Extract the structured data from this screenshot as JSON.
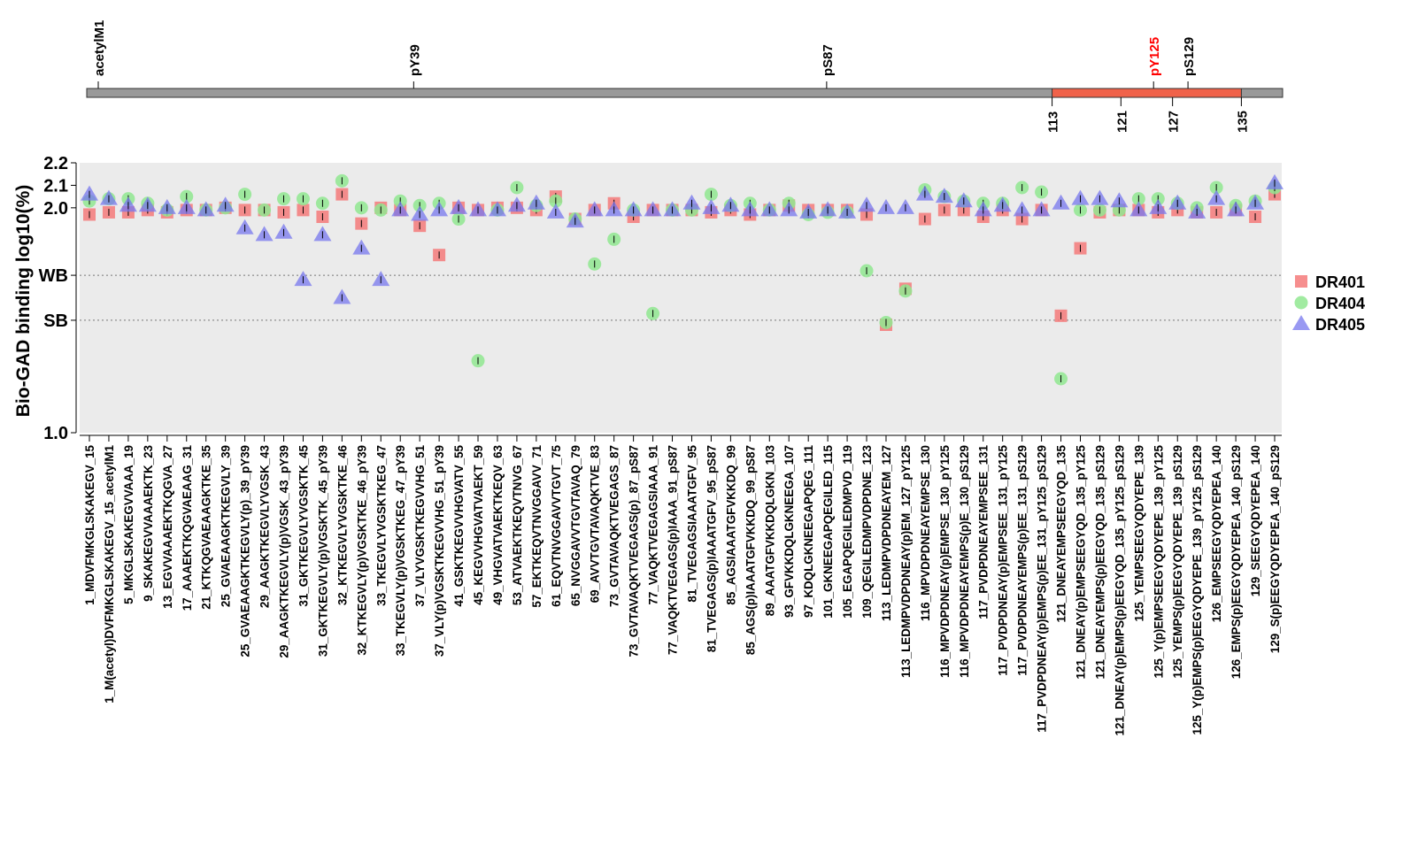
{
  "chart_data": {
    "type": "scatter",
    "ylabel": "Bio-GAD binding log10(%)",
    "yscale": "log10 of percent binding",
    "ylim": [
      1.0,
      2.2
    ],
    "yticks": [
      {
        "label": "1.0",
        "value": 1.0
      },
      {
        "label": "SB",
        "value": 1.5
      },
      {
        "label": "WB",
        "value": 1.7
      },
      {
        "label": "2.0",
        "value": 2.0
      },
      {
        "label": "2.1",
        "value": 2.1
      },
      {
        "label": "2.2",
        "value": 2.2
      }
    ],
    "reference_lines": [
      {
        "label": "WB",
        "value": 1.7
      },
      {
        "label": "SB",
        "value": 1.5
      }
    ],
    "legend_position": "right",
    "grid": false,
    "colors": {
      "DR401": "#f47a7a",
      "DR404": "#90e890",
      "DR405": "#7777ee",
      "highlight": "#ff0000",
      "region": "#f0624a",
      "bar": "#999999",
      "panel": "#ebebeb"
    },
    "categories": [
      "1_MDVFMKGLSKAKEGV_15",
      "1_M(acetyl)DVFMKGLSKAKEGV_15_acetylM1",
      "5_MKGLSKAKEGVVAAA_19",
      "9_SKAKEGVVAAAEKTK_23",
      "13_EGVVAAAEKTKQGVA_27",
      "17_AAAEKTKQGVAEAAG_31",
      "21_KTKQGVAEAAGKTKE_35",
      "25_GVAEAAGKTKEGVLY_39",
      "25_GVAEAAGKTKEGVLY(p)_39_pY39",
      "29_AAGKTKEGVLYVGSK_43",
      "29_AAGKTKEGVLY(p)VGSK_43_pY39",
      "31_GKTKEGVLYVGSKTK_45",
      "31_GKTKEGVLY(p)VGSKTK_45_pY39",
      "32_KTKEGVLYVGSKTKE_46",
      "32_KTKEGVLY(p)VGSKTKE_46_pY39",
      "33_TKEGVLYVGSKTKEG_47",
      "33_TKEGVLY(p)VGSKTKEG_47_pY39",
      "37_VLYVGSKTKEGVVHG_51",
      "37_VLY(p)VGSKTKEGVVHG_51_pY39",
      "41_GSKTKEGVVHGVATV_55",
      "45_KEGVVHGVATVAEKT_59",
      "49_VHGVATVAEKTKEQV_63",
      "53_ATVAEKTKEQVTNVG_67",
      "57_EKTKEQVTNVGGAVV_71",
      "61_EQVTNVGGAVVTGVT_75",
      "65_NVGGAVVTGVTAVAQ_79",
      "69_AVVTGVTAVAQKTVE_83",
      "73_GVTAVAQKTVEGAGS_87",
      "73_GVTAVAQKTVEGAGS(p)_87_pS87",
      "77_VAQKTVEGAGSIAAA_91",
      "77_VAQKTVEGAGS(p)IAAA_91_pS87",
      "81_TVEGAGSIAAATGFV_95",
      "81_TVEGAGS(p)IAAATGFV_95_pS87",
      "85_AGSIAAATGFVKKDQ_99",
      "85_AGS(p)IAAATGFVKKDQ_99_pS87",
      "89_AAATGFVKKDQLGKN_103",
      "93_GFVKKDQLGKNEEGA_107",
      "97_KDQLGKNEEGAPQEG_111",
      "101_GKNEEGAPQEGILED_115",
      "105_EGAPQEGILEDMPVD_119",
      "109_QEGILEDMPVDPDNE_123",
      "113_LEDMPVDPDNEAYEM_127",
      "113_LEDMPVDPDNEAY(p)EM_127_pY125",
      "116_MPVDPDNEAYEMPSE_130",
      "116_MPVDPDNEAY(p)EMPSE_130_pY125",
      "116_MPVDPDNEAYEMPS(p)E_130_pS129",
      "117_PVDPDNEAYEMPSEE_131",
      "117_PVDPDNEAY(p)EMPSEE_131_pY125",
      "117_PVDPDNEAYEMPS(p)EE_131_pS129",
      "117_PVDPDNEAY(p)EMPS(p)EE_131_pY125_pS129",
      "121_DNEAYEMPSEEGYQD_135",
      "121_DNEAY(p)EMPSEEGYQD_135_pY125",
      "121_DNEAYEMPS(p)EEGYQD_135_pS129",
      "121_DNEAY(p)EMPS(p)EEGYQD_135_pY125_pS129",
      "125_YEMPSEEGYQDYEPE_139",
      "125_Y(p)EMPSEEGYQDYEPE_139_pY125",
      "125_YEMPS(p)EEGYQDYEPE_139_pS129",
      "125_Y(p)EMPS(p)EEGYQDYEPE_139_pY125_pS129",
      "126_EMPSEEGYQDYEPEA_140",
      "126_EMPS(p)EEGYQDYEPEA_140_pS129",
      "129_SEEGYQDYEPEA_140",
      "129_S(p)EEGYQDYEPEA_140_pS129"
    ],
    "series": [
      {
        "name": "DR401",
        "shape": "square",
        "values": [
          1.97,
          1.98,
          1.98,
          1.99,
          1.98,
          1.99,
          1.99,
          2.0,
          1.99,
          1.99,
          1.98,
          1.99,
          1.96,
          2.06,
          1.93,
          2.0,
          1.99,
          1.92,
          1.79,
          2.0,
          1.99,
          2.0,
          2.0,
          1.99,
          2.05,
          1.95,
          1.99,
          2.02,
          1.96,
          1.99,
          1.99,
          1.99,
          1.98,
          1.99,
          1.97,
          1.99,
          2.01,
          1.99,
          1.99,
          1.99,
          1.97,
          1.48,
          1.64,
          1.95,
          1.99,
          1.99,
          1.96,
          1.99,
          1.95,
          1.99,
          1.52,
          1.82,
          1.98,
          1.99,
          1.99,
          1.98,
          1.99,
          1.98,
          1.98,
          1.99,
          1.96,
          2.06
        ]
      },
      {
        "name": "DR404",
        "shape": "circle",
        "values": [
          2.03,
          2.04,
          2.04,
          2.02,
          1.99,
          2.05,
          1.99,
          2.0,
          2.06,
          1.99,
          2.04,
          2.04,
          2.02,
          2.12,
          2.0,
          1.99,
          2.03,
          2.01,
          2.02,
          1.95,
          1.32,
          1.99,
          2.09,
          2.01,
          2.03,
          1.95,
          1.75,
          1.86,
          1.99,
          1.53,
          1.99,
          1.99,
          2.06,
          2.01,
          2.02,
          1.99,
          2.02,
          1.97,
          1.98,
          1.98,
          1.72,
          1.49,
          1.63,
          2.08,
          2.05,
          2.03,
          2.02,
          2.02,
          2.09,
          2.07,
          1.24,
          1.99,
          1.99,
          1.99,
          2.04,
          2.04,
          2.02,
          2.0,
          2.09,
          2.01,
          2.03,
          2.09
        ]
      },
      {
        "name": "DR405",
        "shape": "triangle",
        "values": [
          2.06,
          2.04,
          2.01,
          2.01,
          2.0,
          2.0,
          1.99,
          2.01,
          1.91,
          1.88,
          1.89,
          1.68,
          1.88,
          1.6,
          1.82,
          1.68,
          1.99,
          1.97,
          1.99,
          2.0,
          1.99,
          1.99,
          2.01,
          2.02,
          1.98,
          1.94,
          1.99,
          1.99,
          1.99,
          1.99,
          1.99,
          2.02,
          2.0,
          2.01,
          1.99,
          1.99,
          1.99,
          1.98,
          1.99,
          1.98,
          2.01,
          2.0,
          2.0,
          2.06,
          2.05,
          2.03,
          1.99,
          2.01,
          1.99,
          1.99,
          2.02,
          2.04,
          2.04,
          2.03,
          1.99,
          2.0,
          2.02,
          1.98,
          2.04,
          1.99,
          2.02,
          2.11
        ]
      }
    ],
    "protein_map": {
      "modifications": [
        {
          "label": "acetylM1",
          "position": 1,
          "highlight": false
        },
        {
          "label": "pY39",
          "position": 39,
          "highlight": false
        },
        {
          "label": "pS87",
          "position": 87,
          "highlight": false
        },
        {
          "label": "pY125",
          "position": 125,
          "highlight": true
        },
        {
          "label": "pS129",
          "position": 129,
          "highlight": false
        }
      ],
      "region": {
        "start": 113,
        "end": 135
      },
      "region_ticks": [
        "113",
        "121",
        "127",
        "135"
      ],
      "length": 140
    }
  }
}
